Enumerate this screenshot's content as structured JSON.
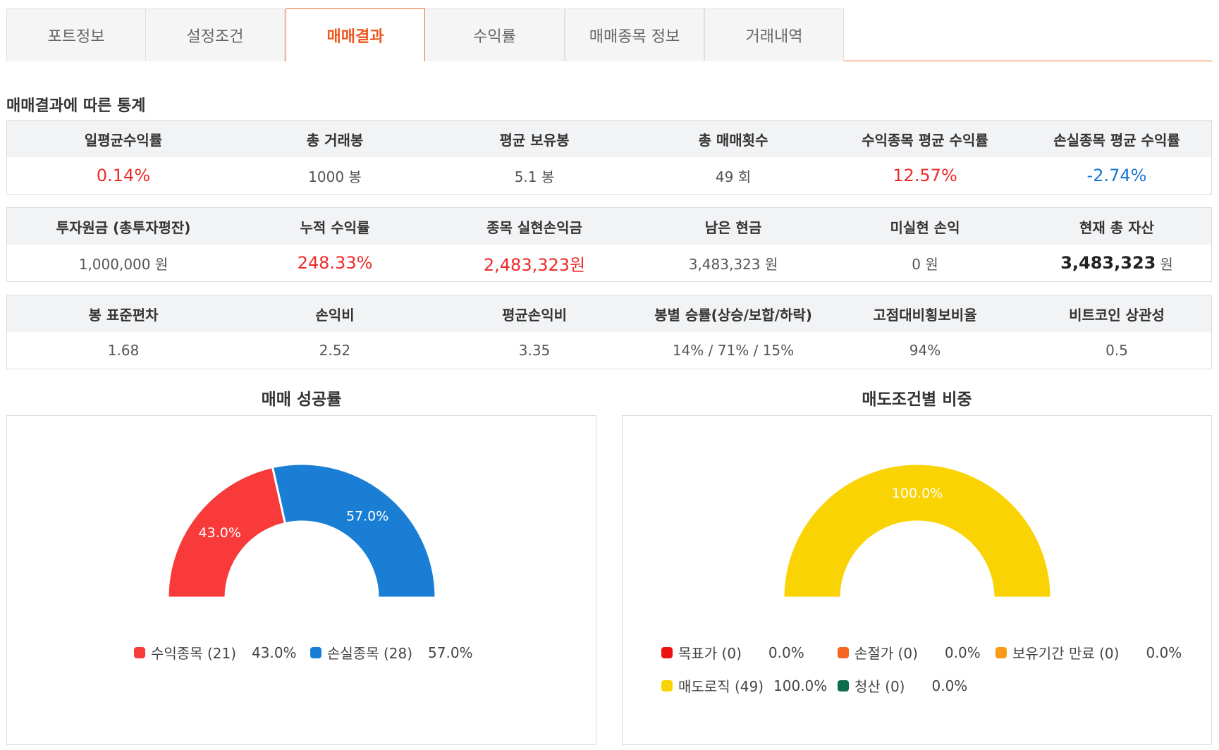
{
  "tabs": [
    {
      "label": "포트정보"
    },
    {
      "label": "설정조건"
    },
    {
      "label": "매매결과"
    },
    {
      "label": "수익률"
    },
    {
      "label": "매매종목 정보"
    },
    {
      "label": "거래내역"
    }
  ],
  "active_tab": "매매결과",
  "section_title": "매매결과에 따른 통계",
  "stats1": {
    "headers": [
      "일평균수익률",
      "총 거래봉",
      "평균 보유봉",
      "총 매매횟수",
      "수익종목 평균 수익률",
      "손실종목 평균 수익률"
    ],
    "values": [
      "0.14%",
      "1000 봉",
      "5.1 봉",
      "49 회",
      "12.57%",
      "-2.74%"
    ]
  },
  "stats2": {
    "headers": [
      "투자원금 (총투자평잔)",
      "누적 수익률",
      "종목 실현손익금",
      "남은 현금",
      "미실현 손익",
      "현재 총 자산"
    ],
    "values": [
      "1,000,000 원",
      "248.33%",
      "2,483,323원",
      "3,483,323 원",
      "0 원",
      "3,483,323"
    ],
    "total_asset_unit": "원"
  },
  "stats3": {
    "headers": [
      "봉 표준편차",
      "손익비",
      "평균손익비",
      "봉별 승률(상승/보합/하락)",
      "고점대비횡보비율",
      "비트코인 상관성"
    ],
    "values": [
      "1.68",
      "2.52",
      "3.35",
      "14% / 71% / 15%",
      "94%",
      "0.5"
    ]
  },
  "colors": {
    "accent": "#f26a2e",
    "positive": "#ee2b2b",
    "negative": "#1976d2",
    "header_bg": "#f2f3f5"
  },
  "chart_data": [
    {
      "type": "pie",
      "title": "매매 성공률",
      "series": [
        {
          "name": "수익종목 (21)",
          "value": 43.0,
          "label": "43.0%",
          "color": "#f93a3a"
        },
        {
          "name": "손실종목 (28)",
          "value": 57.0,
          "label": "57.0%",
          "color": "#1a7fd4"
        }
      ]
    },
    {
      "type": "pie",
      "title": "매도조건별 비중",
      "series": [
        {
          "name": "목표가 (0)",
          "value": 0.0,
          "label": "0.0%",
          "color": "#ee1111"
        },
        {
          "name": "손절가 (0)",
          "value": 0.0,
          "label": "0.0%",
          "color": "#f76522"
        },
        {
          "name": "보유기간 만료 (0)",
          "value": 0.0,
          "label": "0.0%",
          "color": "#fb9a14"
        },
        {
          "name": "매도로직 (49)",
          "value": 100.0,
          "label": "100.0%",
          "color": "#fad304"
        },
        {
          "name": "청산 (0)",
          "value": 0.0,
          "label": "0.0%",
          "color": "#0d6e4b"
        }
      ]
    }
  ]
}
